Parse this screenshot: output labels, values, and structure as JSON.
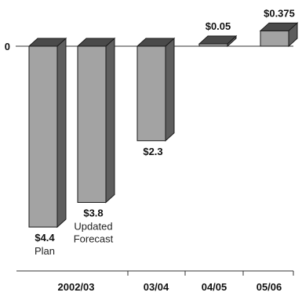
{
  "chart_data": {
    "type": "bar",
    "style": "3d-waterfall",
    "title": "",
    "xlabel": "",
    "ylabel": "",
    "zero_label": "0",
    "grid": false,
    "legend": "none",
    "categories": [
      "2002/03",
      "03/04",
      "04/05",
      "05/06"
    ],
    "bars": [
      {
        "category": "2002/03",
        "value": -4.4,
        "label": "$4.4",
        "sublabel": [
          "Plan"
        ]
      },
      {
        "category": "2002/03",
        "value": -3.8,
        "label": "$3.8",
        "sublabel": [
          "Updated",
          "Forecast"
        ]
      },
      {
        "category": "03/04",
        "value": -2.3,
        "label": "$2.3",
        "sublabel": []
      },
      {
        "category": "04/05",
        "value": 0.05,
        "label": "$0.05",
        "sublabel": []
      },
      {
        "category": "05/06",
        "value": 0.375,
        "label": "$0.375",
        "sublabel": []
      }
    ],
    "colors": {
      "front": "#a3a3a3",
      "side": "#5e5e5e",
      "top": "#4a4a4a",
      "stroke": "#1a1a1a"
    }
  }
}
